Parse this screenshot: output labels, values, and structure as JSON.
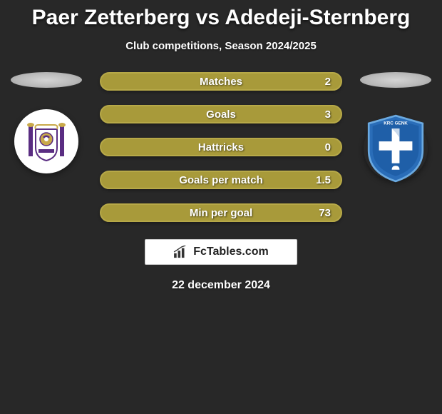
{
  "title": "Paer Zetterberg vs Adedeji-Sternberg",
  "subtitle": "Club competitions, Season 2024/2025",
  "date": "22 december 2024",
  "watermark": "FcTables.com",
  "colors": {
    "bar_fill": "#a89a3a",
    "bar_border": "#b7a948",
    "background": "#282828",
    "text": "#ffffff"
  },
  "stats": [
    {
      "label": "Matches",
      "value": "2"
    },
    {
      "label": "Goals",
      "value": "3"
    },
    {
      "label": "Hattricks",
      "value": "0"
    },
    {
      "label": "Goals per match",
      "value": "1.5"
    },
    {
      "label": "Min per goal",
      "value": "73"
    }
  ],
  "clubs": {
    "left": {
      "name": "anderlecht",
      "primary": "#5a2d82",
      "secondary": "#ffffff"
    },
    "right": {
      "name": "genk",
      "primary": "#1f5fa8",
      "secondary": "#ffffff"
    }
  }
}
